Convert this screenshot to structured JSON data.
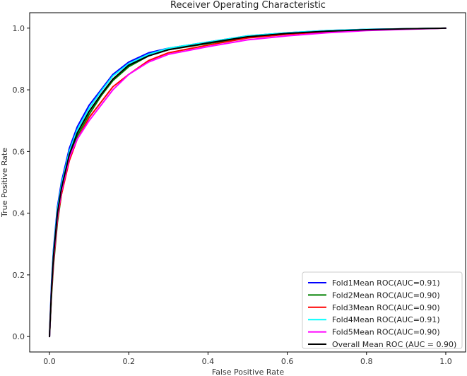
{
  "chart_data": {
    "type": "line",
    "title": "Receiver Operating Characteristic",
    "xlabel": "False Positive Rate",
    "ylabel": "True Positive Rate",
    "xlim": [
      -0.05,
      1.05
    ],
    "ylim": [
      -0.05,
      1.05
    ],
    "xticks": [
      "0.0",
      "0.2",
      "0.4",
      "0.6",
      "0.8",
      "1.0"
    ],
    "yticks": [
      "0.0",
      "0.2",
      "0.4",
      "0.6",
      "0.8",
      "1.0"
    ],
    "grid": false,
    "legend_position": "lower-right",
    "x": [
      0.0,
      0.005,
      0.01,
      0.02,
      0.03,
      0.05,
      0.07,
      0.1,
      0.13,
      0.16,
      0.2,
      0.25,
      0.3,
      0.4,
      0.5,
      0.6,
      0.7,
      0.8,
      0.9,
      1.0
    ],
    "series": [
      {
        "name": "Fold1Mean ROC(AUC=0.91)",
        "color": "#0000ff",
        "values": [
          0.0,
          0.17,
          0.28,
          0.42,
          0.5,
          0.61,
          0.68,
          0.75,
          0.8,
          0.85,
          0.89,
          0.92,
          0.935,
          0.955,
          0.975,
          0.985,
          0.992,
          0.996,
          0.998,
          1.0
        ]
      },
      {
        "name": "Fold2Mean ROC(AUC=0.90)",
        "color": "#008000",
        "values": [
          0.0,
          0.13,
          0.23,
          0.37,
          0.46,
          0.58,
          0.65,
          0.72,
          0.78,
          0.83,
          0.875,
          0.91,
          0.93,
          0.95,
          0.97,
          0.982,
          0.99,
          0.995,
          0.998,
          1.0
        ]
      },
      {
        "name": "Fold3Mean ROC(AUC=0.90)",
        "color": "#ff0000",
        "values": [
          0.0,
          0.14,
          0.24,
          0.38,
          0.46,
          0.57,
          0.64,
          0.71,
          0.76,
          0.81,
          0.85,
          0.895,
          0.92,
          0.945,
          0.968,
          0.98,
          0.988,
          0.994,
          0.997,
          1.0
        ]
      },
      {
        "name": "Fold4Mean ROC(AUC=0.91)",
        "color": "#00ffff",
        "values": [
          0.0,
          0.16,
          0.27,
          0.41,
          0.49,
          0.6,
          0.67,
          0.74,
          0.795,
          0.845,
          0.885,
          0.915,
          0.935,
          0.955,
          0.975,
          0.985,
          0.992,
          0.996,
          0.998,
          1.0
        ]
      },
      {
        "name": "Fold5Mean ROC(AUC=0.90)",
        "color": "#ff00ff",
        "values": [
          0.0,
          0.15,
          0.25,
          0.39,
          0.47,
          0.58,
          0.64,
          0.7,
          0.75,
          0.8,
          0.85,
          0.89,
          0.915,
          0.94,
          0.962,
          0.975,
          0.985,
          0.992,
          0.996,
          1.0
        ]
      },
      {
        "name": "Overall Mean ROC (AUC = 0.90)",
        "color": "#000000",
        "values": [
          0.0,
          0.15,
          0.26,
          0.4,
          0.48,
          0.59,
          0.66,
          0.73,
          0.785,
          0.835,
          0.88,
          0.91,
          0.93,
          0.952,
          0.972,
          0.983,
          0.99,
          0.995,
          0.998,
          1.0
        ]
      }
    ]
  }
}
